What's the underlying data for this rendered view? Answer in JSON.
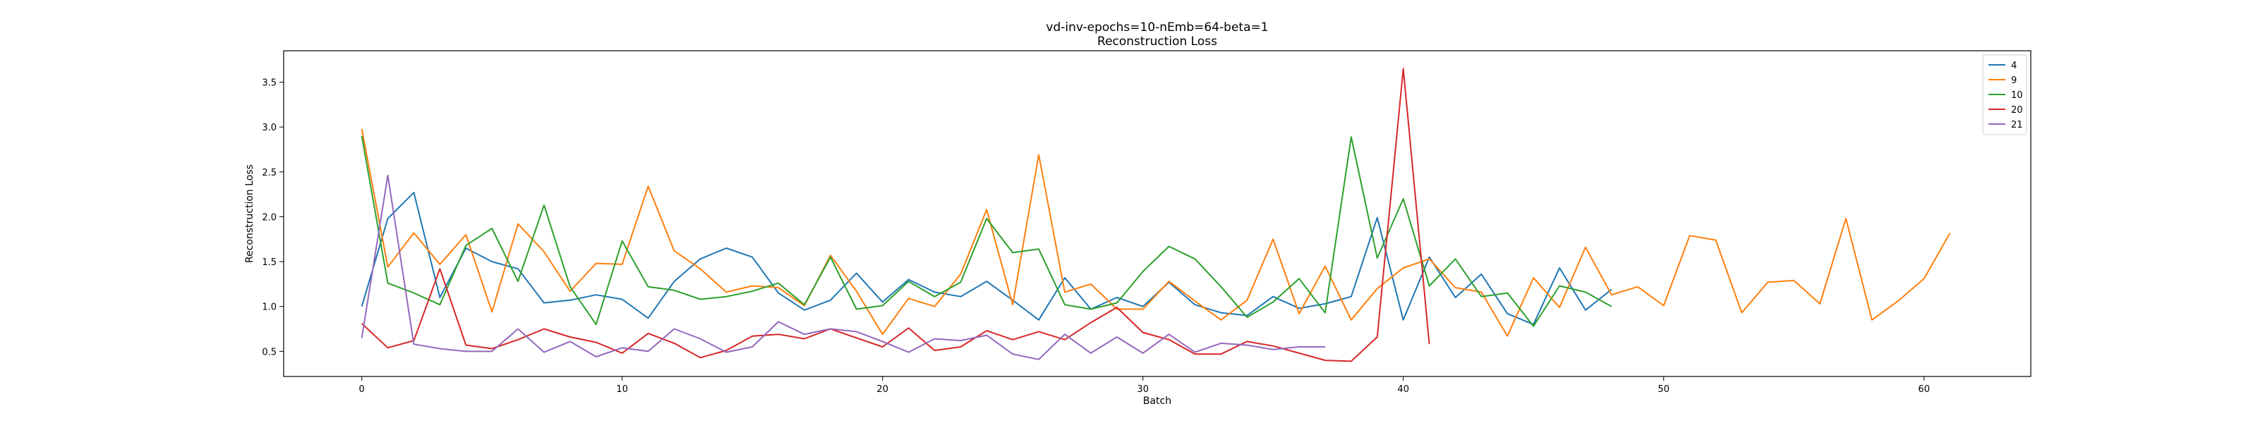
{
  "chart_data": {
    "type": "line",
    "title": "vd-inv-epochs=10-nEmb=64-beta=1",
    "subtitle": "Reconstruction Loss",
    "xlabel": "Batch",
    "ylabel": "Reconstruction Loss",
    "xlim": [
      -3,
      64.1
    ],
    "ylim": [
      0.22,
      3.85
    ],
    "xticks": [
      0,
      10,
      20,
      30,
      40,
      50,
      60
    ],
    "yticks": [
      0.5,
      1.0,
      1.5,
      2.0,
      2.5,
      3.0,
      3.5
    ],
    "ytick_labels": [
      "0.5",
      "1.0",
      "1.5",
      "2.0",
      "2.5",
      "3.0",
      "3.5"
    ],
    "grid": false,
    "legend": "top-right",
    "series": [
      {
        "name": "4",
        "color": "#1f77b4",
        "values": [
          1.0,
          1.98,
          2.27,
          1.1,
          1.65,
          1.5,
          1.42,
          1.04,
          1.07,
          1.13,
          1.08,
          0.87,
          1.28,
          1.53,
          1.65,
          1.55,
          1.15,
          0.96,
          1.07,
          1.37,
          1.05,
          1.3,
          1.16,
          1.11,
          1.28,
          1.07,
          0.85,
          1.32,
          0.97,
          1.1,
          1.0,
          1.27,
          1.02,
          0.93,
          0.9,
          1.11,
          0.98,
          1.03,
          1.11,
          1.99,
          0.85,
          1.55,
          1.1,
          1.36,
          0.92,
          0.8,
          1.43,
          0.96,
          1.19
        ]
      },
      {
        "name": "9",
        "color": "#ff7f0e",
        "values": [
          2.98,
          1.44,
          1.82,
          1.47,
          1.8,
          0.94,
          1.92,
          1.61,
          1.17,
          1.48,
          1.47,
          2.34,
          1.62,
          1.42,
          1.16,
          1.23,
          1.21,
          1.01,
          1.57,
          1.17,
          0.69,
          1.09,
          1.0,
          1.36,
          2.08,
          1.02,
          2.69,
          1.16,
          1.25,
          0.97,
          0.97,
          1.28,
          1.06,
          0.85,
          1.07,
          1.75,
          0.92,
          1.45,
          0.85,
          1.2,
          1.43,
          1.53,
          1.21,
          1.16,
          0.67,
          1.32,
          0.99,
          1.66,
          1.13,
          1.22,
          1.01,
          1.79,
          1.74,
          0.93,
          1.27,
          1.29,
          1.03,
          1.98,
          0.85,
          1.06,
          1.31,
          1.82
        ]
      },
      {
        "name": "10",
        "color": "#2ca02c",
        "values": [
          2.9,
          1.26,
          1.15,
          1.02,
          1.68,
          1.87,
          1.28,
          2.13,
          1.22,
          0.8,
          1.73,
          1.22,
          1.18,
          1.08,
          1.11,
          1.17,
          1.26,
          1.02,
          1.55,
          0.97,
          1.01,
          1.28,
          1.11,
          1.27,
          1.98,
          1.6,
          1.64,
          1.02,
          0.97,
          1.04,
          1.39,
          1.67,
          1.53,
          1.22,
          0.88,
          1.05,
          1.31,
          0.93,
          2.89,
          1.54,
          2.2,
          1.23,
          1.53,
          1.11,
          1.15,
          0.78,
          1.23,
          1.16,
          1.0
        ]
      },
      {
        "name": "20",
        "color": "#d62728",
        "values": [
          0.81,
          0.54,
          0.62,
          1.42,
          0.57,
          0.53,
          0.63,
          0.75,
          0.66,
          0.6,
          0.48,
          0.7,
          0.59,
          0.43,
          0.51,
          0.67,
          0.69,
          0.64,
          0.75,
          0.65,
          0.55,
          0.76,
          0.51,
          0.55,
          0.73,
          0.63,
          0.72,
          0.63,
          0.82,
          0.99,
          0.71,
          0.63,
          0.47,
          0.47,
          0.61,
          0.56,
          0.48,
          0.4,
          0.39,
          0.66,
          3.65,
          0.58
        ]
      },
      {
        "name": "21",
        "color": "#9467bd",
        "values": [
          0.65,
          2.46,
          0.58,
          0.53,
          0.5,
          0.5,
          0.75,
          0.49,
          0.61,
          0.44,
          0.54,
          0.5,
          0.75,
          0.64,
          0.49,
          0.55,
          0.83,
          0.69,
          0.75,
          0.72,
          0.61,
          0.49,
          0.64,
          0.62,
          0.68,
          0.47,
          0.41,
          0.69,
          0.48,
          0.66,
          0.48,
          0.69,
          0.49,
          0.59,
          0.57,
          0.52,
          0.55,
          0.55
        ]
      }
    ]
  }
}
